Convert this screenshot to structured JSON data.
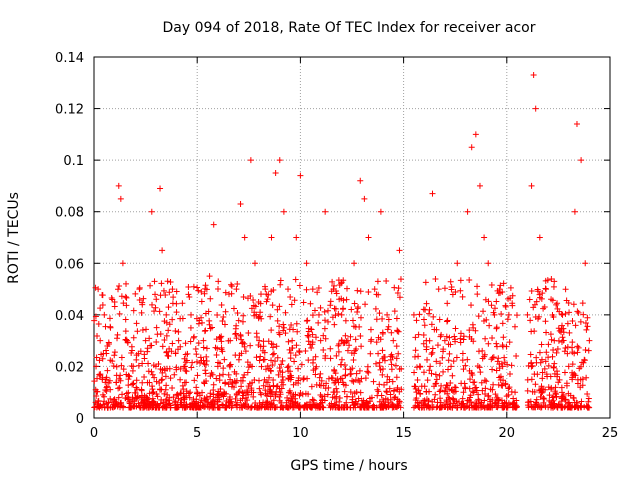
{
  "chart_data": {
    "type": "scatter",
    "title": "Day 094 of 2018, Rate Of TEC Index for receiver acor",
    "xlabel": "GPS time / hours",
    "ylabel": "ROTI / TECUs",
    "xlim": [
      0,
      25
    ],
    "ylim": [
      0,
      0.14
    ],
    "x_ticks": [
      0,
      5,
      10,
      15,
      20,
      25
    ],
    "x_tick_labels": [
      "0",
      "5",
      "10",
      "15",
      "20",
      "25"
    ],
    "y_ticks": [
      0,
      0.02,
      0.04,
      0.06,
      0.08,
      0.1,
      0.12,
      0.14
    ],
    "y_tick_labels": [
      "0",
      "0.02",
      "0.04",
      "0.06",
      "0.08",
      "0.1",
      "0.12",
      "0.14"
    ],
    "grid": true,
    "marker": "+",
    "marker_color": "#ff0000",
    "note": "Dense point cloud (~thousands of points); representative sampled points below.",
    "series": [
      {
        "name": "",
        "x": [
          0.1,
          0.2,
          0.3,
          0.4,
          0.5,
          0.6,
          0.8,
          1.0,
          1.2,
          1.3,
          1.4,
          1.6,
          1.9,
          2.2,
          2.5,
          2.8,
          3.0,
          3.2,
          3.3,
          3.5,
          3.8,
          4.1,
          4.4,
          4.7,
          5.0,
          5.3,
          5.6,
          5.8,
          6.0,
          6.3,
          6.6,
          6.9,
          7.1,
          7.3,
          7.6,
          7.8,
          8.0,
          8.3,
          8.6,
          8.8,
          9.0,
          9.2,
          9.4,
          9.6,
          9.8,
          10.0,
          10.3,
          10.6,
          10.9,
          11.2,
          11.6,
          12.0,
          12.3,
          12.6,
          12.9,
          13.1,
          13.3,
          13.6,
          13.9,
          14.2,
          14.5,
          14.8,
          15.5,
          15.8,
          16.1,
          16.4,
          16.7,
          17.0,
          17.3,
          17.6,
          17.9,
          18.1,
          18.3,
          18.5,
          18.7,
          18.9,
          19.1,
          19.4,
          19.8,
          20.1,
          20.4,
          21.0,
          21.2,
          21.3,
          21.4,
          21.6,
          21.9,
          22.3,
          22.7,
          23.0,
          23.3,
          23.4,
          23.6,
          23.8,
          24.0
        ],
        "y": [
          0.02,
          0.05,
          0.03,
          0.015,
          0.04,
          0.025,
          0.035,
          0.045,
          0.09,
          0.085,
          0.06,
          0.03,
          0.02,
          0.05,
          0.03,
          0.08,
          0.02,
          0.089,
          0.065,
          0.04,
          0.05,
          0.03,
          0.02,
          0.04,
          0.01,
          0.03,
          0.055,
          0.075,
          0.02,
          0.01,
          0.03,
          0.05,
          0.083,
          0.07,
          0.1,
          0.06,
          0.03,
          0.05,
          0.07,
          0.095,
          0.1,
          0.08,
          0.05,
          0.03,
          0.07,
          0.094,
          0.06,
          0.05,
          0.04,
          0.08,
          0.05,
          0.04,
          0.03,
          0.06,
          0.092,
          0.085,
          0.07,
          0.05,
          0.08,
          0.04,
          0.03,
          0.065,
          0.04,
          0.02,
          0.03,
          0.087,
          0.05,
          0.03,
          0.02,
          0.06,
          0.01,
          0.08,
          0.105,
          0.11,
          0.09,
          0.07,
          0.06,
          0.04,
          0.02,
          0.04,
          0.01,
          0.04,
          0.09,
          0.133,
          0.12,
          0.07,
          0.05,
          0.03,
          0.04,
          0.02,
          0.08,
          0.114,
          0.1,
          0.06,
          0.03
        ]
      }
    ]
  }
}
